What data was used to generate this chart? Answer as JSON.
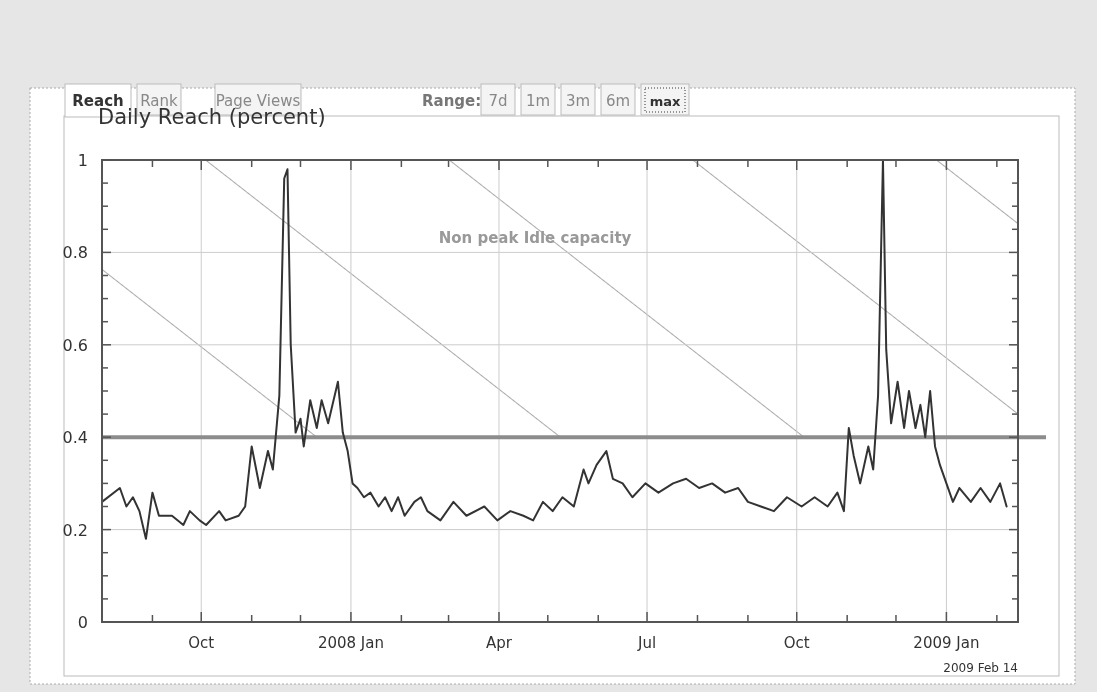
{
  "chart_data": {
    "type": "line",
    "title": "Daily Reach (percent)",
    "annotations": [
      "Reach",
      "Rank",
      "Page Views",
      "Range:",
      "7d",
      "1m",
      "3m",
      "6m",
      "max",
      "2009 Feb 14"
    ],
    "xlim": [
      "2007-08-01",
      "2009-02-14"
    ],
    "xticks": [
      {
        "value": "2007-09-01",
        "label": null
      },
      {
        "value": "2007-10-01",
        "label": "Oct"
      },
      {
        "value": "2007-11-01",
        "label": null
      },
      {
        "value": "2007-12-01",
        "label": null
      },
      {
        "value": "2008-01-01",
        "label": "2008 Jan"
      },
      {
        "value": "2008-02-01",
        "label": null
      },
      {
        "value": "2008-03-01",
        "label": null
      },
      {
        "value": "2008-04-01",
        "label": "Apr"
      },
      {
        "value": "2008-05-01",
        "label": null
      },
      {
        "value": "2008-06-01",
        "label": null
      },
      {
        "value": "2008-07-01",
        "label": "Jul"
      },
      {
        "value": "2008-08-01",
        "label": null
      },
      {
        "value": "2008-09-01",
        "label": null
      },
      {
        "value": "2008-10-01",
        "label": "Oct"
      },
      {
        "value": "2008-11-01",
        "label": null
      },
      {
        "value": "2008-12-01",
        "label": null
      },
      {
        "value": "2009-01-01",
        "label": "2009 Jan"
      },
      {
        "value": "2009-02-01",
        "label": null
      }
    ],
    "ylim": [
      0,
      1
    ],
    "yticks": [
      0,
      {
        "value": 0.05,
        "label": null
      },
      {
        "value": 0.1,
        "label": null
      },
      {
        "value": 0.15,
        "label": null
      },
      0.2,
      {
        "value": 0.25,
        "label": null
      },
      {
        "value": 0.3,
        "label": null
      },
      {
        "value": 0.35,
        "label": null
      },
      0.4,
      {
        "value": 0.45,
        "label": null
      },
      {
        "value": 0.5,
        "label": null
      },
      {
        "value": 0.55,
        "label": null
      },
      0.6,
      {
        "value": 0.65,
        "label": null
      },
      {
        "value": 0.7,
        "label": null
      },
      {
        "value": 0.75,
        "label": null
      },
      0.8,
      {
        "value": 0.85,
        "label": null
      },
      {
        "value": 0.9,
        "label": null
      },
      {
        "value": 0.95,
        "label": null
      },
      1
    ],
    "grid": true,
    "ref_lines": [
      {
        "axis": "y",
        "value": 0.4,
        "label": null,
        "color": "#8c8c8c"
      }
    ],
    "bands": [
      {
        "axis": "y",
        "from": 0.4,
        "to": 1,
        "label": "Non peak Idle capacity",
        "color": "#555555"
      }
    ],
    "x": [
      "2007-08-01",
      "2007-08-12",
      "2007-08-16",
      "2007-08-20",
      "2007-08-24",
      "2007-08-28",
      "2007-09-01",
      "2007-09-05",
      "2007-09-13",
      "2007-09-20",
      "2007-09-24",
      "2007-09-30",
      "2007-10-04",
      "2007-10-12",
      "2007-10-16",
      "2007-10-24",
      "2007-10-28",
      "2007-11-01",
      "2007-11-06",
      "2007-11-11",
      "2007-11-14",
      "2007-11-18",
      "2007-11-21",
      "2007-11-23",
      "2007-11-25",
      "2007-11-28",
      "2007-12-01",
      "2007-12-03",
      "2007-12-07",
      "2007-12-11",
      "2007-12-14",
      "2007-12-18",
      "2007-12-24",
      "2007-12-27",
      "2007-12-30",
      "2008-01-02",
      "2008-01-05",
      "2008-01-09",
      "2008-01-13",
      "2008-01-18",
      "2008-01-22",
      "2008-01-26",
      "2008-01-30",
      "2008-02-03",
      "2008-02-09",
      "2008-02-13",
      "2008-02-17",
      "2008-02-25",
      "2008-03-04",
      "2008-03-12",
      "2008-03-23",
      "2008-03-31",
      "2008-04-08",
      "2008-04-16",
      "2008-04-22",
      "2008-04-28",
      "2008-05-04",
      "2008-05-10",
      "2008-05-17",
      "2008-05-23",
      "2008-05-26",
      "2008-05-31",
      "2008-06-06",
      "2008-06-10",
      "2008-06-16",
      "2008-06-22",
      "2008-06-30",
      "2008-07-08",
      "2008-07-17",
      "2008-07-25",
      "2008-08-02",
      "2008-08-10",
      "2008-08-18",
      "2008-08-26",
      "2008-09-01",
      "2008-09-09",
      "2008-09-17",
      "2008-09-25",
      "2008-10-04",
      "2008-10-12",
      "2008-10-20",
      "2008-10-26",
      "2008-10-30",
      "2008-11-02",
      "2008-11-05",
      "2008-11-09",
      "2008-11-14",
      "2008-11-17",
      "2008-11-20",
      "2008-11-23",
      "2008-11-25",
      "2008-11-28",
      "2008-12-02",
      "2008-12-06",
      "2008-12-09",
      "2008-12-13",
      "2008-12-16",
      "2008-12-19",
      "2008-12-22",
      "2008-12-25",
      "2008-12-28",
      "2009-01-01",
      "2009-01-05",
      "2009-01-09",
      "2009-01-16",
      "2009-01-22",
      "2009-01-28",
      "2009-02-03",
      "2009-02-07"
    ],
    "series": [
      {
        "color": "#333333",
        "values": [
          0.26,
          0.29,
          0.25,
          0.27,
          0.24,
          0.18,
          0.28,
          0.23,
          0.23,
          0.21,
          0.24,
          0.22,
          0.21,
          0.24,
          0.22,
          0.23,
          0.25,
          0.38,
          0.29,
          0.37,
          0.33,
          0.49,
          0.96,
          0.98,
          0.6,
          0.41,
          0.44,
          0.38,
          0.48,
          0.42,
          0.48,
          0.43,
          0.52,
          0.41,
          0.37,
          0.3,
          0.29,
          0.27,
          0.28,
          0.25,
          0.27,
          0.24,
          0.27,
          0.23,
          0.26,
          0.27,
          0.24,
          0.22,
          0.26,
          0.23,
          0.25,
          0.22,
          0.24,
          0.23,
          0.22,
          0.26,
          0.24,
          0.27,
          0.25,
          0.33,
          0.3,
          0.34,
          0.37,
          0.31,
          0.3,
          0.27,
          0.3,
          0.28,
          0.3,
          0.31,
          0.29,
          0.3,
          0.28,
          0.29,
          0.26,
          0.25,
          0.24,
          0.27,
          0.25,
          0.27,
          0.25,
          0.28,
          0.24,
          0.42,
          0.36,
          0.3,
          0.38,
          0.33,
          0.49,
          1,
          0.59,
          0.43,
          0.52,
          0.42,
          0.5,
          0.42,
          0.47,
          0.4,
          0.5,
          0.38,
          0.34,
          0.3,
          0.26,
          0.29,
          0.26,
          0.29,
          0.26,
          0.3,
          0.25
        ]
      }
    ]
  }
}
